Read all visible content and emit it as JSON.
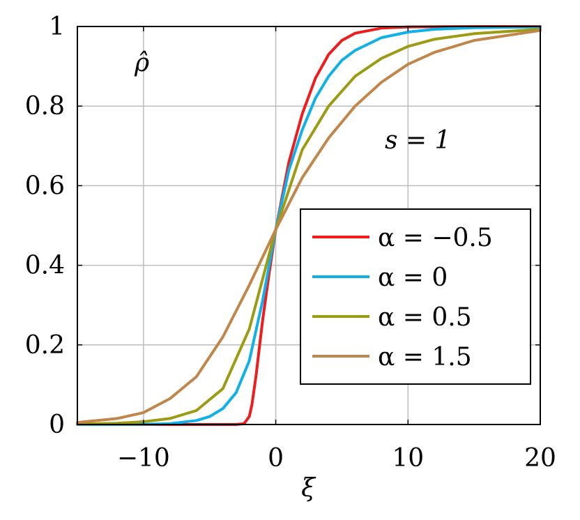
{
  "chart_data": {
    "type": "line",
    "title": "",
    "xlabel": "ξ",
    "ylabel": "ρ̂",
    "annotation": "s = 1",
    "xlim": [
      -15,
      20
    ],
    "ylim": [
      0,
      1
    ],
    "x_ticks": [
      -10,
      0,
      10,
      20
    ],
    "x_tick_labels": [
      "−10",
      "0",
      "10",
      "20"
    ],
    "y_ticks": [
      0,
      0.2,
      0.4,
      0.6,
      0.8,
      1
    ],
    "y_tick_labels": [
      "0",
      "0.2",
      "0.4",
      "0.6",
      "0.8",
      "1"
    ],
    "grid": true,
    "legend_position": "center-right",
    "series": [
      {
        "name": "α = −0.5",
        "color": "#ee1c1c",
        "x": [
          -15,
          -3,
          -2.4,
          -2,
          -1.8,
          -1.5,
          -1,
          -0.5,
          0,
          1,
          2,
          3,
          4,
          5,
          6,
          8,
          10,
          15,
          20
        ],
        "y": [
          0,
          0,
          0.002,
          0.02,
          0.05,
          0.12,
          0.26,
          0.38,
          0.49,
          0.66,
          0.78,
          0.87,
          0.93,
          0.965,
          0.983,
          0.996,
          0.999,
          1.0,
          1.0
        ]
      },
      {
        "name": "α = 0",
        "color": "#10b0e8",
        "x": [
          -15,
          -10,
          -8,
          -6,
          -5,
          -4,
          -3,
          -2,
          -1,
          0,
          1,
          2,
          3,
          4,
          5,
          6,
          8,
          10,
          12,
          15,
          20
        ],
        "y": [
          0,
          0.0005,
          0.002,
          0.01,
          0.02,
          0.04,
          0.08,
          0.16,
          0.31,
          0.49,
          0.64,
          0.74,
          0.82,
          0.875,
          0.915,
          0.94,
          0.972,
          0.986,
          0.993,
          0.997,
          0.999
        ]
      },
      {
        "name": "α = 0.5",
        "color": "#9b9b14",
        "x": [
          -15,
          -12,
          -10,
          -8,
          -6,
          -4,
          -2,
          0,
          2,
          4,
          6,
          8,
          10,
          12,
          15,
          20
        ],
        "y": [
          0.001,
          0.003,
          0.007,
          0.015,
          0.035,
          0.09,
          0.24,
          0.49,
          0.69,
          0.8,
          0.875,
          0.92,
          0.95,
          0.968,
          0.982,
          0.993
        ]
      },
      {
        "name": "α = 1.5",
        "color": "#c0864a",
        "x": [
          -15,
          -12,
          -10,
          -8,
          -6,
          -4,
          -2,
          0,
          2,
          4,
          6,
          8,
          10,
          12,
          15,
          20
        ],
        "y": [
          0.005,
          0.015,
          0.03,
          0.065,
          0.12,
          0.22,
          0.35,
          0.49,
          0.62,
          0.72,
          0.8,
          0.86,
          0.905,
          0.935,
          0.965,
          0.99
        ]
      }
    ]
  }
}
